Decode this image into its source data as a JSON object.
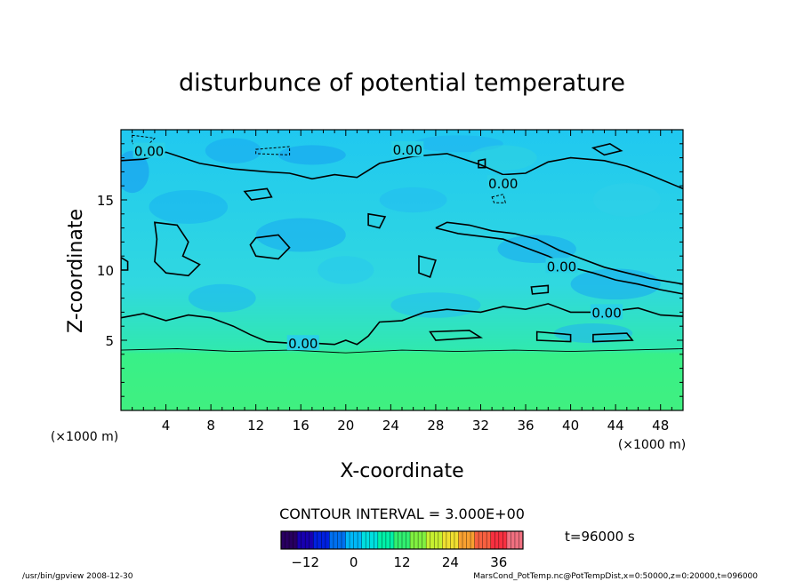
{
  "chart_data": {
    "type": "heatmap",
    "title": "disturbunce of potential temperature",
    "xlabel": "X-coordinate",
    "ylabel": "Z-coordinate",
    "x_unit": "(×1000 m)",
    "z_unit": "(×1000 m)",
    "xlim": [
      0,
      50
    ],
    "ylim": [
      0,
      20
    ],
    "x_ticks": [
      4,
      8,
      12,
      16,
      20,
      24,
      28,
      32,
      36,
      40,
      44,
      48
    ],
    "y_ticks": [
      5,
      10,
      15
    ],
    "contour_interval_text": "CONTOUR INTERVAL = 3.000E+00",
    "contour_labels": [
      {
        "text": "0.00",
        "x": 2.5,
        "y": 18.5
      },
      {
        "text": "0.00",
        "x": 25.5,
        "y": 18.6
      },
      {
        "text": "0.00",
        "x": 34.0,
        "y": 16.2
      },
      {
        "text": "0.00",
        "x": 39.2,
        "y": 10.3
      },
      {
        "text": "0.00",
        "x": 43.2,
        "y": 7.0
      },
      {
        "text": "0.00",
        "x": 16.2,
        "y": 4.8
      }
    ],
    "colorbar": {
      "range": [
        -18,
        42
      ],
      "ticks": [
        -12,
        0,
        12,
        24,
        36
      ],
      "colors": [
        "#280060",
        "#1800b0",
        "#0020e0",
        "#0070f0",
        "#00b8f8",
        "#00e0e0",
        "#00f0a8",
        "#30f070",
        "#80f040",
        "#c8f030",
        "#f0e030",
        "#f8a030",
        "#f86040",
        "#f83040",
        "#f07080"
      ]
    },
    "time_text": "t=96000 s",
    "footer_left": "/usr/bin/gpview   2008-12-30",
    "footer_right": "MarsCond_PotTemp.nc@PotTempDist,x=0:50000,z=0:20000,t=096000"
  }
}
